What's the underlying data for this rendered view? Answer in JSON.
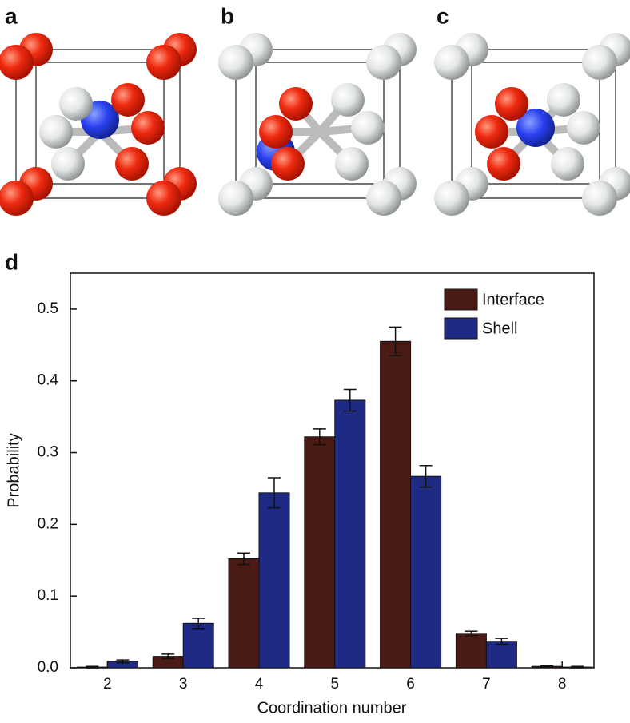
{
  "panels": [
    "a",
    "b",
    "c"
  ],
  "chart_data": {
    "type": "bar",
    "panel_label": "d",
    "x_label": "Coordination number",
    "y_label": "Probability",
    "categories": [
      "2",
      "3",
      "4",
      "5",
      "6",
      "7",
      "8"
    ],
    "series": [
      {
        "name": "Interface",
        "color": "#4a1a14",
        "values": [
          0.001,
          0.016,
          0.152,
          0.322,
          0.455,
          0.048,
          0.002
        ],
        "errors": [
          0.001,
          0.003,
          0.008,
          0.011,
          0.02,
          0.003,
          0.001
        ]
      },
      {
        "name": "Shell",
        "color": "#1f2a85",
        "values": [
          0.009,
          0.062,
          0.244,
          0.373,
          0.267,
          0.037,
          0.001
        ],
        "errors": [
          0.002,
          0.007,
          0.021,
          0.015,
          0.015,
          0.004,
          0.001
        ]
      }
    ],
    "ylim": [
      0,
      0.55
    ],
    "yticks": [
      {
        "value": 0,
        "label": "0.0"
      },
      0.1,
      0.2,
      0.3,
      0.4,
      0.5
    ],
    "legend": "upper right"
  }
}
